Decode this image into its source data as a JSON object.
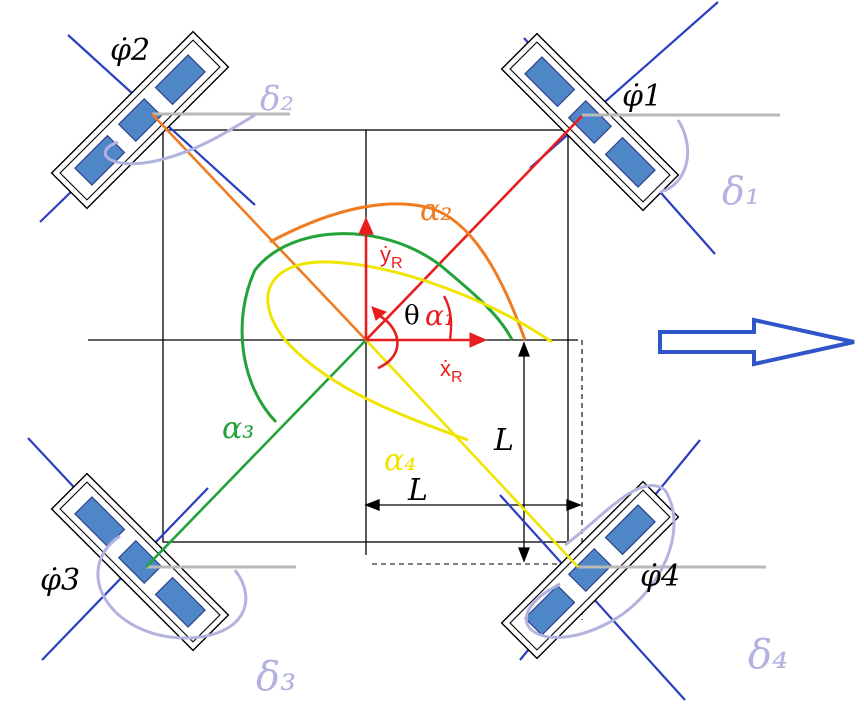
{
  "labels": {
    "wheel_rate_1": "φ̇1",
    "wheel_rate_2": "φ̇2",
    "wheel_rate_3": "φ̇3",
    "wheel_rate_4": "φ̇4",
    "length_vertical": "L",
    "length_horizontal": "L",
    "theta": "θ",
    "y_dot": "ẏ",
    "y_sub": "R",
    "x_dot": "ẋ",
    "x_sub": "R"
  },
  "colors": {
    "frame": "#000000",
    "axle_blue": "#2a3ec0",
    "wheel_fill": "#4f86c8",
    "wheel_stroke": "#2c3f8a",
    "gray_ref": "#b9b9b9",
    "alpha1": "#e81e1e",
    "alpha2": "#f07c22",
    "alpha3": "#22a33a",
    "alpha4": "#f0e500",
    "delta_annotation": "#b3b3e0",
    "arrow_blue": "#2f55c8"
  },
  "handwritten": [
    "α2",
    "α1",
    "α3",
    "α4",
    "δ1",
    "δ2",
    "δ3",
    "δ4"
  ]
}
